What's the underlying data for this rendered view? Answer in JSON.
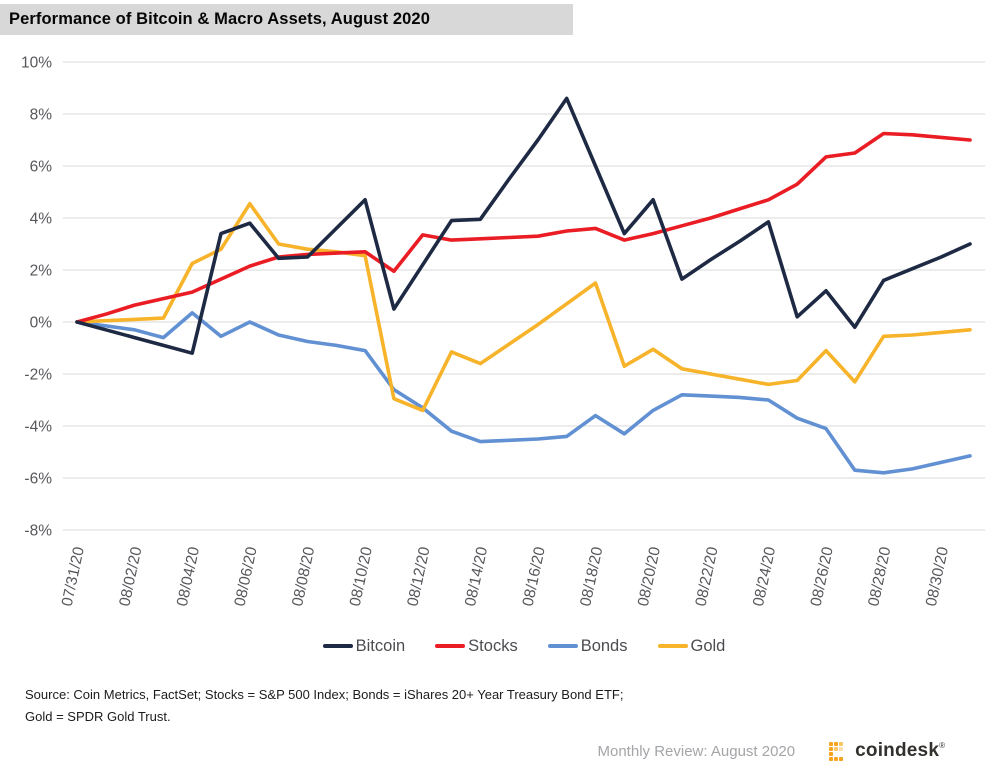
{
  "title_bar": {
    "title": "Performance of Bitcoin & Macro Assets, August 2020"
  },
  "source": {
    "line1": "Source: Coin Metrics, FactSet; Stocks = S&P 500 Index; Bonds = iShares 20+ Year Treasury Bond ETF;",
    "line2": "Gold = SPDR Gold Trust."
  },
  "footer": {
    "review_label": "Monthly Review: August 2020",
    "brand": "coindesk",
    "registered_mark": "®"
  },
  "chart_data": {
    "type": "line",
    "title": "Performance of Bitcoin & Macro Assets, August 2020",
    "xlabel": "",
    "ylabel": "",
    "x_range": [
      "07/31/20",
      "08/31/20"
    ],
    "x_frequency": "daily",
    "x_labels": [
      "07/31/20",
      "08/02/20",
      "08/04/20",
      "08/06/20",
      "08/08/20",
      "08/10/20",
      "08/12/20",
      "08/14/20",
      "08/16/20",
      "08/18/20",
      "08/20/20",
      "08/22/20",
      "08/24/20",
      "08/26/20",
      "08/28/20",
      "08/30/20"
    ],
    "x_label_day_stride": 2,
    "ylim": [
      -8,
      10
    ],
    "ytick_step": 2,
    "ytick_suffix": "%",
    "grid": "horizontal",
    "grid_color": "#d9d9d9",
    "axis_label_color": "#56575b",
    "legend_position": "bottom",
    "series": [
      {
        "name": "Bonds",
        "color": "#6190d3",
        "values": [
          0,
          -0.15,
          -0.3,
          -0.6,
          0.35,
          -0.55,
          0,
          -0.5,
          -0.75,
          -0.9,
          -1.1,
          -2.6,
          -3.3,
          -4.2,
          -4.6,
          -4.55,
          -4.5,
          -4.4,
          -3.6,
          -4.3,
          -3.4,
          -2.8,
          -2.85,
          -2.9,
          -3.0,
          -3.7,
          -4.1,
          -5.7,
          -5.8,
          -5.65,
          -5.4,
          -5.15
        ]
      },
      {
        "name": "Gold",
        "color": "#f7b32a",
        "values": [
          0,
          0.05,
          0.1,
          0.15,
          2.25,
          2.8,
          4.55,
          3.0,
          2.8,
          2.7,
          2.55,
          -2.95,
          -3.4,
          -1.15,
          -1.6,
          -0.85,
          -0.1,
          0.7,
          1.5,
          -1.7,
          -1.05,
          -1.8,
          -2.0,
          -2.2,
          -2.4,
          -2.25,
          -1.1,
          -2.3,
          -0.55,
          -0.5,
          -0.4,
          -0.3
        ]
      },
      {
        "name": "Stocks",
        "color": "#ea1c24",
        "values": [
          0,
          0.3,
          0.65,
          0.9,
          1.15,
          1.65,
          2.15,
          2.5,
          2.6,
          2.65,
          2.7,
          1.95,
          3.35,
          3.15,
          3.2,
          3.25,
          3.3,
          3.5,
          3.6,
          3.15,
          3.4,
          3.7,
          4.0,
          4.35,
          4.7,
          5.3,
          6.35,
          6.5,
          7.25,
          7.2,
          7.1,
          7.0
        ]
      },
      {
        "name": "Bitcoin",
        "color": "#1e2a44",
        "values": [
          0,
          -0.3,
          -0.6,
          -0.9,
          -1.2,
          3.4,
          3.8,
          2.45,
          2.5,
          3.6,
          4.7,
          0.5,
          2.2,
          3.9,
          3.95,
          5.5,
          7.0,
          8.6,
          6.0,
          3.4,
          4.7,
          1.65,
          2.4,
          3.1,
          3.85,
          0.2,
          1.2,
          -0.2,
          1.6,
          2.05,
          2.5,
          3.0
        ]
      }
    ],
    "legend_order": [
      "Bitcoin",
      "Stocks",
      "Bonds",
      "Gold"
    ]
  }
}
